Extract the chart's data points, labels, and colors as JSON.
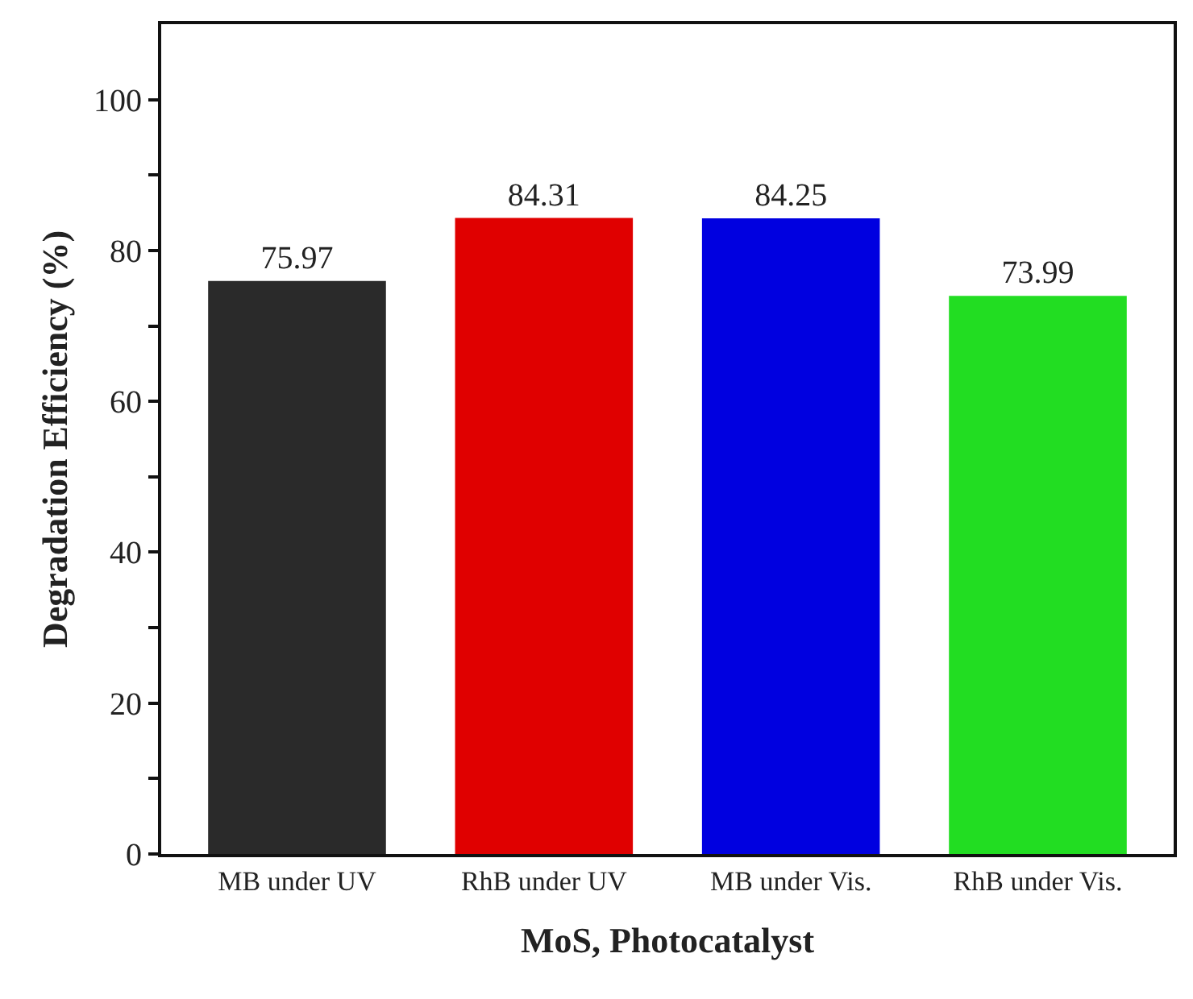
{
  "chart_data": {
    "type": "bar",
    "xlabel": "MoS, Photocatalyst",
    "ylabel": "Degradation Efficiency (%)",
    "categories": [
      "MB under UV",
      "RhB under UV",
      "MB under Vis.",
      "RhB under Vis."
    ],
    "values": [
      75.97,
      84.31,
      84.25,
      73.99
    ],
    "colors": [
      "#2a2a2a",
      "#e00000",
      "#0000e0",
      "#22dd22"
    ],
    "data_labels": true,
    "ylim": [
      0,
      110
    ],
    "yticks": [
      0,
      {
        "value": 10,
        "label": null
      },
      20,
      {
        "value": 30,
        "label": null
      },
      40,
      {
        "value": 50,
        "label": null
      },
      60,
      {
        "value": 70,
        "label": null
      },
      80,
      {
        "value": 90,
        "label": null
      },
      100
    ],
    "grid": false
  }
}
